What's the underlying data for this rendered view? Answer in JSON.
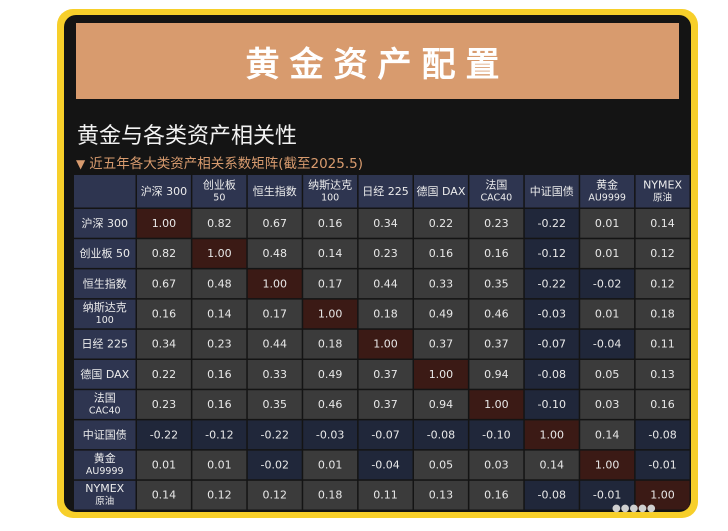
{
  "banner": {
    "title": "黄金资产配置"
  },
  "heading": "黄金与各类资产相关性",
  "subheading": {
    "marker": "▼",
    "text": "近五年各大类资产相关系数矩阵(截至2025.5)"
  },
  "colors": {
    "frame": "#f7cf2a",
    "panel": "#141414",
    "banner": "#d89b6e",
    "cell_neutral": "#3b3b3b",
    "cell_diagonal": "#3b1a15",
    "cell_negative": "#20273a",
    "header_cell": "#2e3550"
  },
  "chart_data": {
    "type": "heatmap",
    "title": "近五年各大类资产相关系数矩阵(截至2025.5)",
    "columns": [
      [
        "沪深 300"
      ],
      [
        "创业板",
        "50"
      ],
      [
        "恒生指数"
      ],
      [
        "纳斯达克",
        "100"
      ],
      [
        "日经 225"
      ],
      [
        "德国 DAX"
      ],
      [
        "法国",
        "CAC40"
      ],
      [
        "中证国债"
      ],
      [
        "黄金",
        "AU9999"
      ],
      [
        "NYMEX",
        "原油"
      ]
    ],
    "rows": [
      [
        "沪深 300"
      ],
      [
        "创业板 50"
      ],
      [
        "恒生指数"
      ],
      [
        "纳斯达克",
        "100"
      ],
      [
        "日经 225"
      ],
      [
        "德国 DAX"
      ],
      [
        "法国",
        "CAC40"
      ],
      [
        "中证国债"
      ],
      [
        "黄金",
        "AU9999"
      ],
      [
        "NYMEX",
        "原油"
      ]
    ],
    "values": [
      [
        "1.00",
        "0.82",
        "0.67",
        "0.16",
        "0.34",
        "0.22",
        "0.23",
        "-0.22",
        "0.01",
        "0.14"
      ],
      [
        "0.82",
        "1.00",
        "0.48",
        "0.14",
        "0.23",
        "0.16",
        "0.16",
        "-0.12",
        "0.01",
        "0.12"
      ],
      [
        "0.67",
        "0.48",
        "1.00",
        "0.17",
        "0.44",
        "0.33",
        "0.35",
        "-0.22",
        "-0.02",
        "0.12"
      ],
      [
        "0.16",
        "0.14",
        "0.17",
        "1.00",
        "0.18",
        "0.49",
        "0.46",
        "-0.03",
        "0.01",
        "0.18"
      ],
      [
        "0.34",
        "0.23",
        "0.44",
        "0.18",
        "1.00",
        "0.37",
        "0.37",
        "-0.07",
        "-0.04",
        "0.11"
      ],
      [
        "0.22",
        "0.16",
        "0.33",
        "0.49",
        "0.37",
        "1.00",
        "0.94",
        "-0.08",
        "0.05",
        "0.13"
      ],
      [
        "0.23",
        "0.16",
        "0.35",
        "0.46",
        "0.37",
        "0.94",
        "1.00",
        "-0.10",
        "0.03",
        "0.16"
      ],
      [
        "-0.22",
        "-0.12",
        "-0.22",
        "-0.03",
        "-0.07",
        "-0.08",
        "-0.10",
        "1.00",
        "0.14",
        "-0.08"
      ],
      [
        "0.01",
        "0.01",
        "-0.02",
        "0.01",
        "-0.04",
        "0.05",
        "0.03",
        "0.14",
        "1.00",
        "-0.01"
      ],
      [
        "0.14",
        "0.12",
        "0.12",
        "0.18",
        "0.11",
        "0.13",
        "0.16",
        "-0.08",
        "-0.01",
        "1.00"
      ]
    ]
  }
}
